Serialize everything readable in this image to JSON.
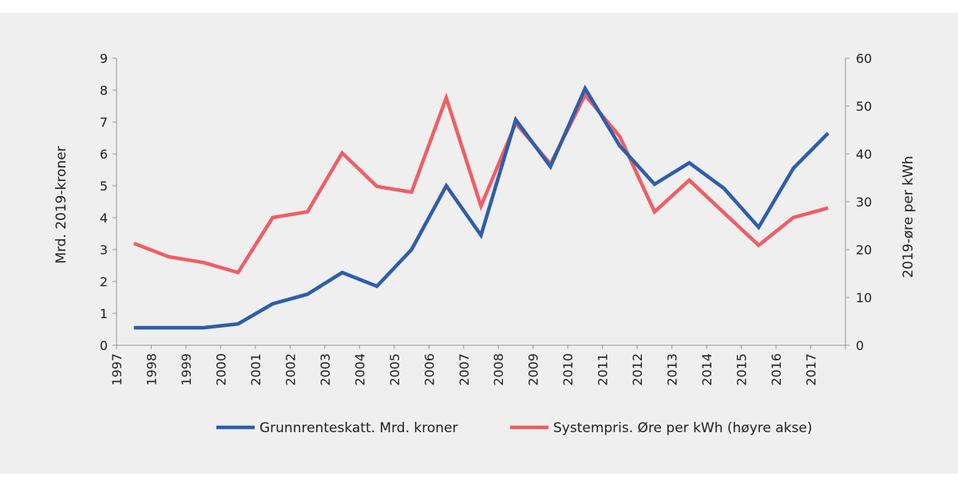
{
  "chart_data": {
    "type": "line",
    "categories": [
      "1997",
      "1998",
      "1999",
      "2000",
      "2001",
      "2002",
      "2003",
      "2004",
      "2005",
      "2006",
      "2007",
      "2008",
      "2009",
      "2010",
      "2011",
      "2012",
      "2013",
      "2014",
      "2015",
      "2016",
      "2017"
    ],
    "series": [
      {
        "name": "Grunnrenteskatt. Mrd. kroner",
        "axis": "left",
        "color": "#2e5ea8",
        "values": [
          0.55,
          0.55,
          0.55,
          0.67,
          1.3,
          1.6,
          2.28,
          1.85,
          3.0,
          5.0,
          3.45,
          7.07,
          5.6,
          8.05,
          6.25,
          5.05,
          5.72,
          4.92,
          3.7,
          5.55,
          6.65
        ]
      },
      {
        "name": "Systempris. Øre per kWh (høyre akse)",
        "axis": "right",
        "color": "#ef5e66",
        "values": [
          21.3,
          18.5,
          17.3,
          15.2,
          26.7,
          27.9,
          40.2,
          33.2,
          32.0,
          51.7,
          29.1,
          46.4,
          37.9,
          52.3,
          43.6,
          27.9,
          34.5,
          27.7,
          20.9,
          26.7,
          28.7
        ]
      }
    ],
    "ylabel_left": "Mrd. 2019-kroner",
    "ylabel_right": "2019-øre per kWh",
    "ylim_left": [
      0,
      9
    ],
    "ylim_right": [
      0,
      60
    ],
    "yticks_left": [
      "0",
      "1",
      "2",
      "3",
      "4",
      "5",
      "6",
      "7",
      "8",
      "9"
    ],
    "yticks_right": [
      "0",
      "10",
      "20",
      "30",
      "40",
      "50",
      "60"
    ],
    "grid": false,
    "legend_position": "bottom"
  }
}
